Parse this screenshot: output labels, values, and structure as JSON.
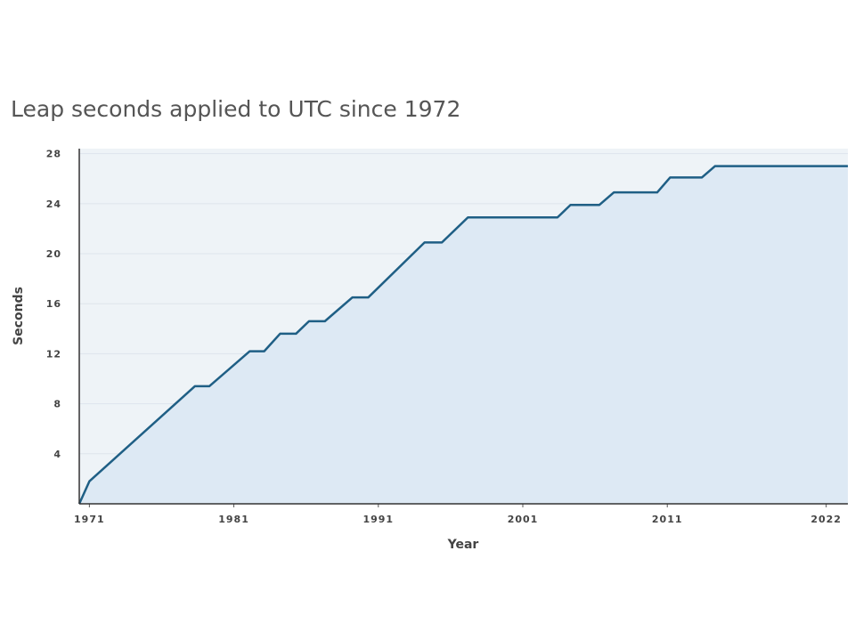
{
  "chart_data": {
    "type": "area",
    "title": "Leap seconds applied to UTC since 1972",
    "x_label": "Year",
    "y_label": "Seconds",
    "x": [
      1970.3,
      1971,
      1978.3,
      1979.3,
      1982.1,
      1983.1,
      1984.2,
      1985.3,
      1986.2,
      1987.3,
      1989.2,
      1990.3,
      1994.2,
      1995.4,
      1997.2,
      2003.4,
      2004.3,
      2006.3,
      2007.3,
      2010.3,
      2011.2,
      2013.4,
      2014.3,
      2023.5
    ],
    "values": [
      0,
      1.8,
      9.4,
      9.4,
      12.2,
      12.2,
      13.6,
      13.6,
      14.6,
      14.6,
      16.5,
      16.5,
      20.9,
      20.9,
      22.9,
      22.9,
      23.9,
      23.9,
      24.9,
      24.9,
      26.1,
      26.1,
      27,
      27
    ],
    "color": "#1f5f85",
    "fill_color": "#dde9f4",
    "xlim": [
      1970.3,
      2023.5
    ],
    "ylim": [
      0,
      28.4
    ],
    "xticks": [
      1971,
      1981,
      1991,
      2001,
      2011,
      2022
    ],
    "yticks": [
      4,
      8,
      12,
      16,
      20,
      24,
      28
    ],
    "grid": true
  }
}
